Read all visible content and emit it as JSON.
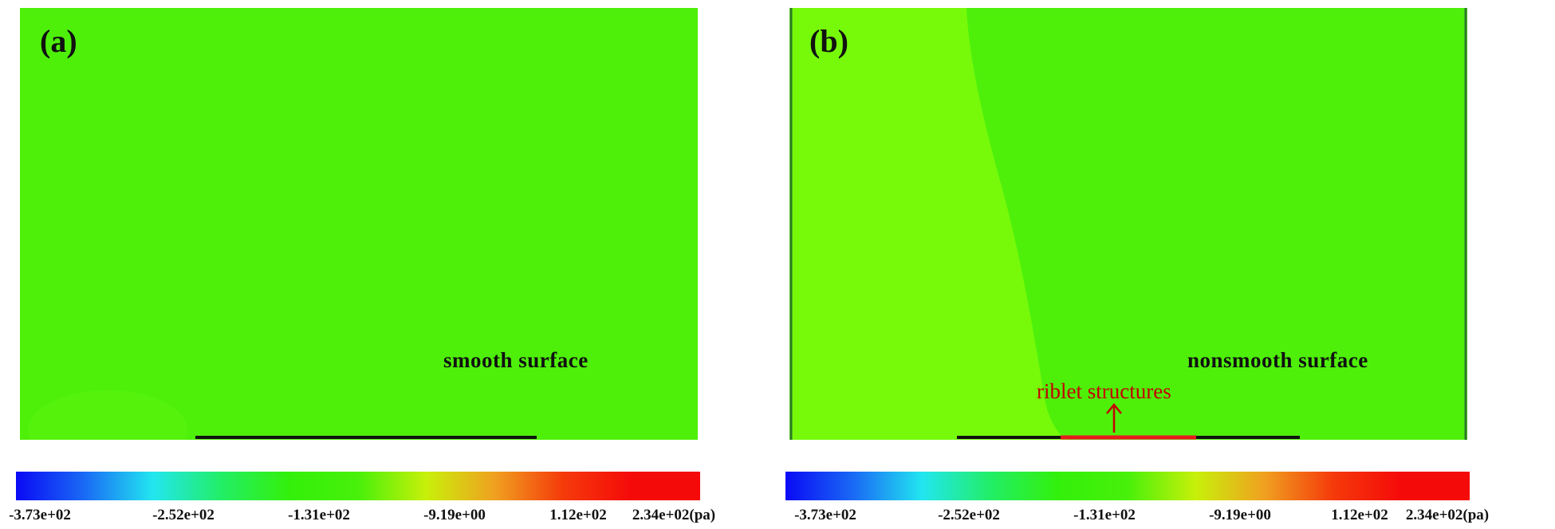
{
  "panels": [
    {
      "letter": "(a)",
      "surface_label": "smooth surface",
      "annotation": ""
    },
    {
      "letter": "(b)",
      "surface_label": "nonsmooth surface",
      "annotation": "riblet structures"
    }
  ],
  "colorbar": {
    "ticks": [
      "-3.73e+02",
      "-2.52e+02",
      "-1.31e+02",
      "-9.19e+00",
      "1.12e+02",
      "2.34e+02(pa)"
    ],
    "stops": [
      "#0a0af5",
      "#1a6af5",
      "#22e6f0",
      "#22ee66",
      "#33f00a",
      "#48f00a",
      "#c8f00a",
      "#f0a020",
      "#f53a0a",
      "#f50a0a",
      "#f50a0a"
    ]
  },
  "field_colors": {
    "background": "#4ef00a",
    "lighter_region": "#76fa0a",
    "surface_line": "#111111",
    "riblet_color": "#e51c1c"
  }
}
